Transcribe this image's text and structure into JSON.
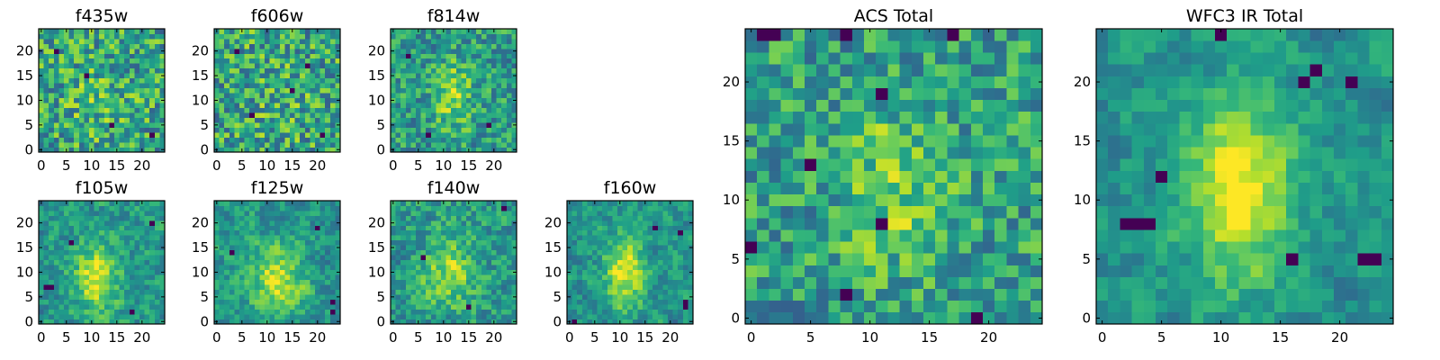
{
  "chart_data": [
    {
      "type": "heatmap",
      "title": "f435w",
      "x_ticks": [
        "0",
        "5",
        "10",
        "15",
        "20"
      ],
      "y_ticks": [
        "0",
        "5",
        "10",
        "15",
        "20"
      ],
      "xlim": [
        -0.5,
        24.5
      ],
      "ylim": [
        -0.5,
        24.5
      ],
      "grid_size": [
        25,
        25
      ],
      "colormap": "viridis",
      "smooth": 0.0,
      "blob": {
        "x": 11,
        "y": 10,
        "sigma_x": 5,
        "sigma_y": 6,
        "amplitude": 0.1
      },
      "dark_pixels": [
        [
          14,
          5
        ],
        [
          9,
          15
        ],
        [
          22,
          3
        ],
        [
          3,
          20
        ]
      ],
      "seed": 11
    },
    {
      "type": "heatmap",
      "title": "f606w",
      "x_ticks": [
        "0",
        "5",
        "10",
        "15",
        "20"
      ],
      "y_ticks": [
        "0",
        "5",
        "10",
        "15",
        "20"
      ],
      "xlim": [
        -0.5,
        24.5
      ],
      "ylim": [
        -0.5,
        24.5
      ],
      "grid_size": [
        25,
        25
      ],
      "colormap": "viridis",
      "smooth": 0.0,
      "blob": {
        "x": 12,
        "y": 11,
        "sigma_x": 5,
        "sigma_y": 6,
        "amplitude": 0.05
      },
      "dark_pixels": [
        [
          4,
          20
        ],
        [
          18,
          17
        ],
        [
          7,
          7
        ],
        [
          21,
          3
        ],
        [
          15,
          12
        ]
      ],
      "seed": 23
    },
    {
      "type": "heatmap",
      "title": "f814w",
      "x_ticks": [
        "0",
        "5",
        "10",
        "15",
        "20"
      ],
      "y_ticks": [
        "0",
        "5",
        "10",
        "15",
        "20"
      ],
      "xlim": [
        -0.5,
        24.5
      ],
      "ylim": [
        -0.5,
        24.5
      ],
      "grid_size": [
        25,
        25
      ],
      "colormap": "viridis",
      "smooth": 0.15,
      "blob": {
        "x": 12,
        "y": 11,
        "sigma_x": 2.5,
        "sigma_y": 5,
        "amplitude": 0.3
      },
      "dark_pixels": [
        [
          3,
          19
        ],
        [
          19,
          5
        ],
        [
          7,
          3
        ]
      ],
      "seed": 37
    },
    {
      "type": "heatmap",
      "title": "f105w",
      "x_ticks": [
        "0",
        "5",
        "10",
        "15",
        "20"
      ],
      "y_ticks": [
        "0",
        "5",
        "10",
        "15",
        "20"
      ],
      "xlim": [
        -0.5,
        24.5
      ],
      "ylim": [
        -0.5,
        24.5
      ],
      "grid_size": [
        25,
        25
      ],
      "colormap": "viridis",
      "smooth": 0.4,
      "blob": {
        "x": 11,
        "y": 9,
        "sigma_x": 3,
        "sigma_y": 5,
        "amplitude": 0.42
      },
      "dark_pixels": [
        [
          1,
          7
        ],
        [
          2,
          7
        ],
        [
          22,
          20
        ],
        [
          6,
          16
        ],
        [
          18,
          2
        ]
      ],
      "seed": 41
    },
    {
      "type": "heatmap",
      "title": "f125w",
      "x_ticks": [
        "0",
        "5",
        "10",
        "15",
        "20"
      ],
      "y_ticks": [
        "0",
        "5",
        "10",
        "15",
        "20"
      ],
      "xlim": [
        -0.5,
        24.5
      ],
      "ylim": [
        -0.5,
        24.5
      ],
      "grid_size": [
        25,
        25
      ],
      "colormap": "viridis",
      "smooth": 0.45,
      "blob": {
        "x": 12,
        "y": 8,
        "sigma_x": 3.5,
        "sigma_y": 5,
        "amplitude": 0.38
      },
      "dark_pixels": [
        [
          23,
          4
        ],
        [
          23,
          2
        ],
        [
          20,
          19
        ],
        [
          3,
          14
        ]
      ],
      "seed": 53
    },
    {
      "type": "heatmap",
      "title": "f140w",
      "x_ticks": [
        "0",
        "5",
        "10",
        "15",
        "20"
      ],
      "y_ticks": [
        "0",
        "5",
        "10",
        "15",
        "20"
      ],
      "xlim": [
        -0.5,
        24.5
      ],
      "ylim": [
        -0.5,
        24.5
      ],
      "grid_size": [
        25,
        25
      ],
      "colormap": "viridis",
      "smooth": 0.35,
      "blob": {
        "x": 11,
        "y": 10,
        "sigma_x": 3.5,
        "sigma_y": 5,
        "amplitude": 0.3
      },
      "dark_pixels": [
        [
          22,
          23
        ],
        [
          6,
          13
        ],
        [
          15,
          3
        ]
      ],
      "seed": 67
    },
    {
      "type": "heatmap",
      "title": "f160w",
      "x_ticks": [
        "0",
        "5",
        "10",
        "15",
        "20"
      ],
      "y_ticks": [
        "0",
        "5",
        "10",
        "15",
        "20"
      ],
      "xlim": [
        -0.5,
        24.5
      ],
      "ylim": [
        -0.5,
        24.5
      ],
      "grid_size": [
        25,
        25
      ],
      "colormap": "viridis",
      "smooth": 0.45,
      "blob": {
        "x": 11,
        "y": 10,
        "sigma_x": 2.8,
        "sigma_y": 5,
        "amplitude": 0.45
      },
      "dark_pixels": [
        [
          17,
          19
        ],
        [
          22,
          18
        ],
        [
          23,
          4
        ],
        [
          23,
          3
        ],
        [
          1,
          0
        ]
      ],
      "seed": 79
    },
    {
      "type": "heatmap",
      "title": "ACS Total",
      "x_ticks": [
        "0",
        "5",
        "10",
        "15",
        "20"
      ],
      "y_ticks": [
        "0",
        "5",
        "10",
        "15",
        "20"
      ],
      "xlim": [
        -0.5,
        24.5
      ],
      "ylim": [
        -0.5,
        24.5
      ],
      "grid_size": [
        25,
        25
      ],
      "colormap": "viridis",
      "smooth": 0.15,
      "blob": {
        "x": 12,
        "y": 11,
        "sigma_x": 3,
        "sigma_y": 5,
        "amplitude": 0.22
      },
      "dark_pixels": [
        [
          2,
          24
        ],
        [
          1,
          24
        ],
        [
          8,
          24
        ],
        [
          5,
          13
        ],
        [
          11,
          8
        ],
        [
          0,
          6
        ],
        [
          8,
          2
        ],
        [
          19,
          0
        ],
        [
          17,
          24
        ],
        [
          11,
          19
        ]
      ],
      "seed": 97
    },
    {
      "type": "heatmap",
      "title": "WFC3 IR Total",
      "x_ticks": [
        "0",
        "5",
        "10",
        "15",
        "20"
      ],
      "y_ticks": [
        "0",
        "5",
        "10",
        "15",
        "20"
      ],
      "xlim": [
        -0.5,
        24.5
      ],
      "ylim": [
        -0.5,
        24.5
      ],
      "grid_size": [
        25,
        25
      ],
      "colormap": "viridis",
      "smooth": 0.55,
      "blob": {
        "x": 11.5,
        "y": 11,
        "sigma_x": 3,
        "sigma_y": 5.5,
        "amplitude": 0.5
      },
      "dark_pixels": [
        [
          2,
          8
        ],
        [
          3,
          8
        ],
        [
          4,
          8
        ],
        [
          5,
          12
        ],
        [
          18,
          21
        ],
        [
          21,
          20
        ],
        [
          17,
          20
        ],
        [
          22,
          5
        ],
        [
          23,
          5
        ],
        [
          16,
          5
        ],
        [
          10,
          24
        ]
      ],
      "seed": 113
    }
  ]
}
